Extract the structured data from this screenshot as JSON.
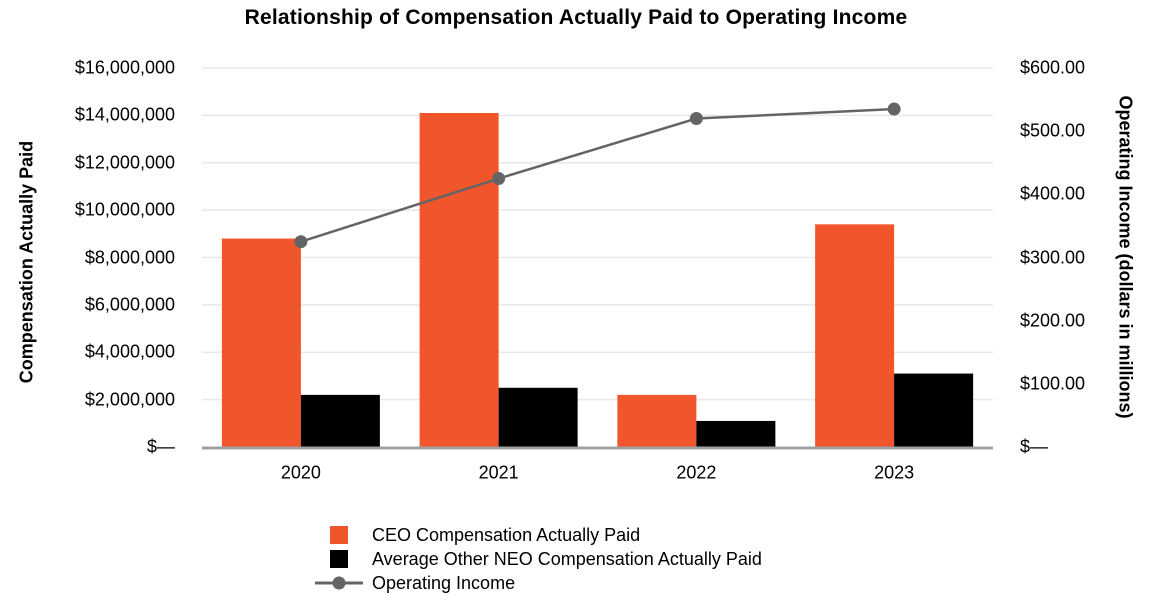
{
  "page": {
    "background": "#ffffff"
  },
  "chart_data": {
    "type": "combo-bar-line",
    "title": "Relationship of Compensation Actually Paid to Operating Income",
    "categories": [
      "2020",
      "2021",
      "2022",
      "2023"
    ],
    "series": [
      {
        "name": "CEO Compensation Actually Paid",
        "type": "bar",
        "axis": "left",
        "color": "#F0552B",
        "values": [
          8800000,
          14100000,
          2200000,
          9400000
        ]
      },
      {
        "name": "Average Other NEO Compensation Actually Paid",
        "type": "bar",
        "axis": "left",
        "color": "#000000",
        "values": [
          2200000,
          2500000,
          1100000,
          3100000
        ]
      },
      {
        "name": "Operating Income",
        "type": "line",
        "axis": "right",
        "color": "#636466",
        "values": [
          325,
          425,
          520,
          535
        ]
      }
    ],
    "left_axis": {
      "label": "Compensation Actually Paid",
      "min": 0,
      "max": 16000000,
      "step": 2000000,
      "tick_labels_top_to_bottom": [
        "$16,000,000",
        "$14,000,000",
        "$12,000,000",
        "$10,000,000",
        "$8,000,000",
        "$6,000,000",
        "$4,000,000",
        "$2,000,000",
        "$—"
      ]
    },
    "right_axis": {
      "label": "Operating Income (dollars in millions)",
      "min": 0,
      "max": 600,
      "step": 100,
      "tick_labels_top_to_bottom": [
        "$600.00",
        "$500.00",
        "$400.00",
        "$300.00",
        "$200.00",
        "$100.00",
        "$—"
      ]
    },
    "x_axis": {
      "tick_labels": [
        "2020",
        "2021",
        "2022",
        "2023"
      ]
    },
    "legend_position": "bottom",
    "grid": "horizontal",
    "style": {
      "gridline_color": "#E8E8E8",
      "axis_line_color": "#9EA0A3",
      "text_color": "#000000"
    }
  }
}
